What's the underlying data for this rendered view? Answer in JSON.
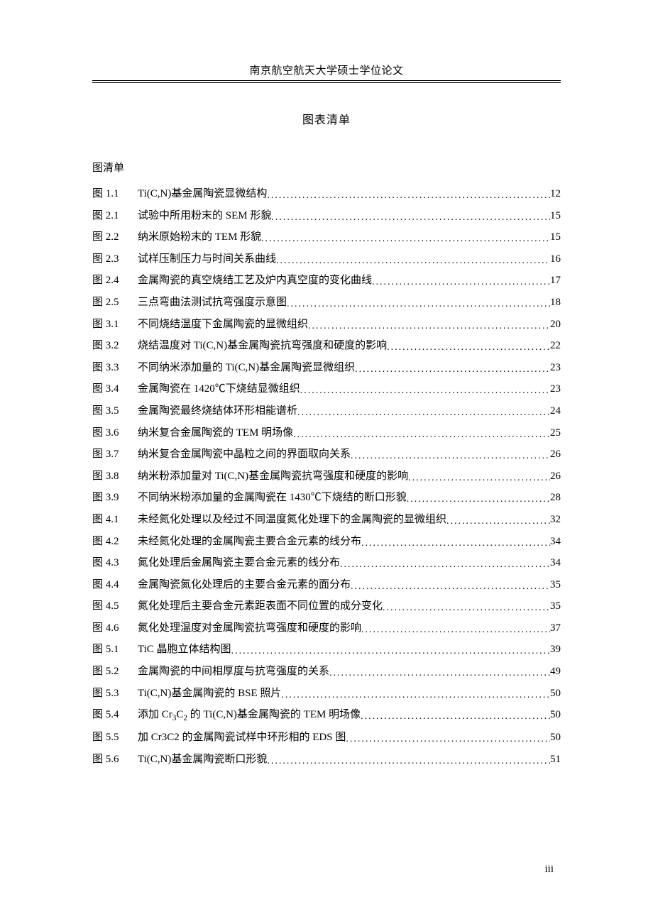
{
  "header": "南京航空航天大学硕士学位论文",
  "main_title": "图表清单",
  "list_heading": "图清单",
  "page_number": "iii",
  "entries": [
    {
      "label": "图 1.1",
      "title": "Ti(C,N)基金属陶瓷显微结构",
      "page": "12"
    },
    {
      "label": "图 2.1",
      "title": "试验中所用粉末的 SEM 形貌",
      "page": "15"
    },
    {
      "label": "图 2.2",
      "title": "纳米原始粉末的 TEM 形貌",
      "page": "15"
    },
    {
      "label": "图 2.3",
      "title": "试样压制压力与时间关系曲线",
      "page": "16"
    },
    {
      "label": "图 2.4",
      "title": "金属陶瓷的真空烧结工艺及炉内真空度的变化曲线",
      "page": "17"
    },
    {
      "label": "图 2.5",
      "title": "三点弯曲法测试抗弯强度示意图",
      "page": "18"
    },
    {
      "label": "图 3.1",
      "title": "不同烧结温度下金属陶瓷的显微组织",
      "page": "20"
    },
    {
      "label": "图 3.2",
      "title": "烧结温度对 Ti(C,N)基金属陶瓷抗弯强度和硬度的影响",
      "page": "22"
    },
    {
      "label": "图 3.3",
      "title": "不同纳米添加量的 Ti(C,N)基金属陶瓷显微组织",
      "page": "23"
    },
    {
      "label": "图 3.4",
      "title": "金属陶瓷在 1420℃下烧结显微组织",
      "page": "23"
    },
    {
      "label": "图 3.5",
      "title": "金属陶瓷最终烧结体环形相能谱析",
      "page": "24"
    },
    {
      "label": "图 3.6",
      "title": "纳米复合金属陶瓷的 TEM 明场像",
      "page": "25"
    },
    {
      "label": "图 3.7",
      "title": "纳米复合金属陶瓷中晶粒之间的界面取向关系",
      "page": "26"
    },
    {
      "label": "图 3.8",
      "title": "纳米粉添加量对 Ti(C,N)基金属陶瓷抗弯强度和硬度的影响",
      "page": "26"
    },
    {
      "label": "图 3.9",
      "title": "不同纳米粉添加量的金属陶瓷在 1430℃下烧结的断口形貌",
      "page": "28"
    },
    {
      "label": "图 4.1",
      "title": "未经氮化处理以及经过不同温度氮化处理下的金属陶瓷的显微组织",
      "page": "32"
    },
    {
      "label": "图 4.2",
      "title": "未经氮化处理的金属陶瓷主要合金元素的线分布",
      "page": "34"
    },
    {
      "label": "图 4.3",
      "title": "氮化处理后金属陶瓷主要合金元素的线分布",
      "page": "34"
    },
    {
      "label": "图 4.4",
      "title": "金属陶瓷氮化处理后的主要合金元素的面分布",
      "page": "35"
    },
    {
      "label": "图 4.5",
      "title": "氮化处理后主要合金元素距表面不同位置的成分变化",
      "page": "35"
    },
    {
      "label": "图 4.6",
      "title": "氮化处理温度对金属陶瓷抗弯强度和硬度的影响",
      "page": "37"
    },
    {
      "label": "图 5.1",
      "title": "TiC 晶胞立体结构图",
      "page": "39"
    },
    {
      "label": "图 5.2",
      "title": "金属陶瓷的中间相厚度与抗弯强度的关系",
      "page": "49"
    },
    {
      "label": "图 5.3",
      "title": "Ti(C,N)基金属陶瓷的 BSE 照片",
      "page": "50"
    },
    {
      "label": "图 5.4",
      "title": "添加 Cr₃C₂ 的 Ti(C,N)基金属陶瓷的 TEM 明场像",
      "page": "50"
    },
    {
      "label": "图 5.5",
      "title": "加 Cr3C2 的金属陶瓷试样中环形相的 EDS 图",
      "page": "50"
    },
    {
      "label": "图 5.6",
      "title": "Ti(C,N)基金属陶瓷断口形貌",
      "page": "51"
    }
  ]
}
